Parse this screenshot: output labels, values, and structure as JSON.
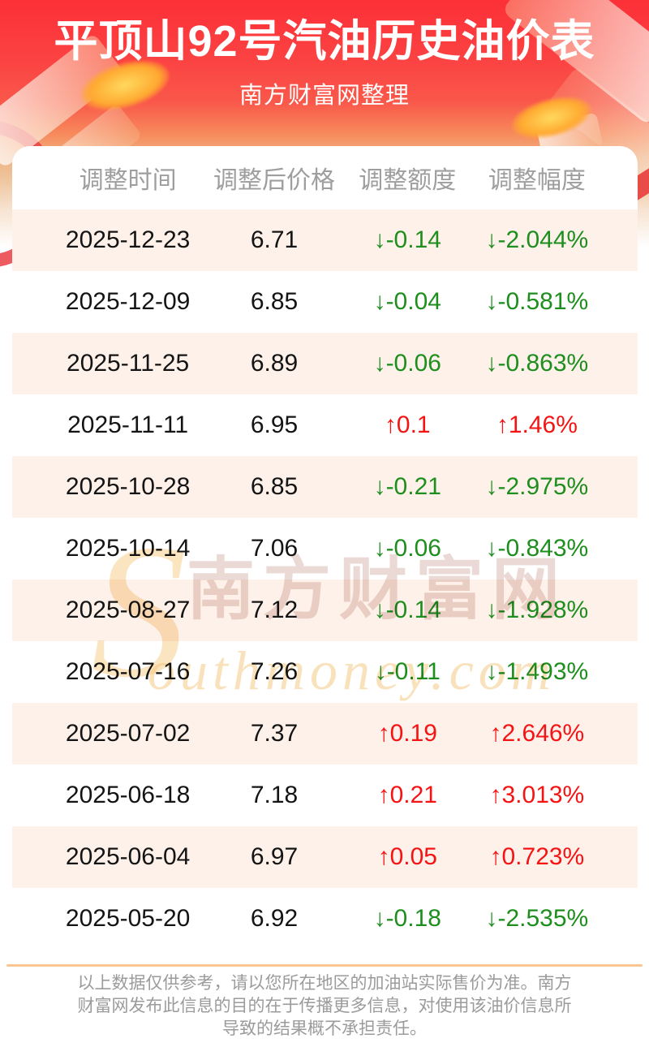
{
  "header": {
    "title": "平顶山92号汽油历史油价表",
    "subtitle": "南方财富网整理"
  },
  "table": {
    "columns": [
      "调整时间",
      "调整后价格",
      "调整额度",
      "调整幅度"
    ],
    "rows": [
      {
        "date": "2025-12-23",
        "price": "6.71",
        "change": "↓-0.14",
        "percent": "↓-2.044%",
        "direction": "down"
      },
      {
        "date": "2025-12-09",
        "price": "6.85",
        "change": "↓-0.04",
        "percent": "↓-0.581%",
        "direction": "down"
      },
      {
        "date": "2025-11-25",
        "price": "6.89",
        "change": "↓-0.06",
        "percent": "↓-0.863%",
        "direction": "down"
      },
      {
        "date": "2025-11-11",
        "price": "6.95",
        "change": "↑0.1",
        "percent": "↑1.46%",
        "direction": "up"
      },
      {
        "date": "2025-10-28",
        "price": "6.85",
        "change": "↓-0.21",
        "percent": "↓-2.975%",
        "direction": "down"
      },
      {
        "date": "2025-10-14",
        "price": "7.06",
        "change": "↓-0.06",
        "percent": "↓-0.843%",
        "direction": "down"
      },
      {
        "date": "2025-08-27",
        "price": "7.12",
        "change": "↓-0.14",
        "percent": "↓-1.928%",
        "direction": "down"
      },
      {
        "date": "2025-07-16",
        "price": "7.26",
        "change": "↓-0.11",
        "percent": "↓-1.493%",
        "direction": "down"
      },
      {
        "date": "2025-07-02",
        "price": "7.37",
        "change": "↑0.19",
        "percent": "↑2.646%",
        "direction": "up"
      },
      {
        "date": "2025-06-18",
        "price": "7.18",
        "change": "↑0.21",
        "percent": "↑3.013%",
        "direction": "up"
      },
      {
        "date": "2025-06-04",
        "price": "6.97",
        "change": "↑0.05",
        "percent": "↑0.723%",
        "direction": "up"
      },
      {
        "date": "2025-05-20",
        "price": "6.92",
        "change": "↓-0.18",
        "percent": "↓-2.535%",
        "direction": "down"
      }
    ]
  },
  "watermark": {
    "initial": "S",
    "cjk": "南方财富网",
    "latin": "outhmoney.com"
  },
  "footer": {
    "disclaimer": "以上数据仅供参考，请以您所在地区的加油站实际售价为准。南方财富网发布此信息的目的在于传播更多信息，对使用该油价信息所导致的结果概不承担责任。"
  },
  "colors": {
    "banner_top": "#fc3038",
    "banner_bottom": "#eec49b",
    "up": "#f51414",
    "down": "#1e8e1e",
    "row_alt_background": "#fdf1ea",
    "divider": "#f9c693",
    "header_text": "#9e9e9e",
    "footer_text": "#9b9b9b"
  }
}
